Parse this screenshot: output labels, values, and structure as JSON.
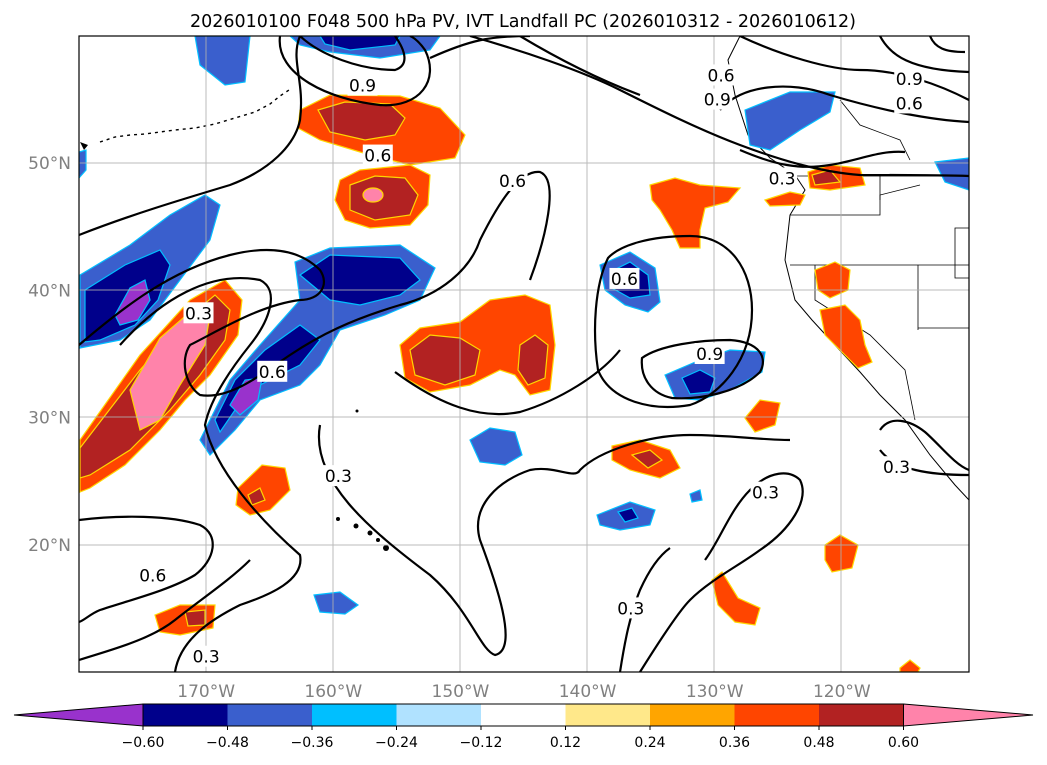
{
  "chart_data": {
    "type": "heatmap",
    "title": "2026010100 F048 500 hPa PV, IVT Landfall PC (2026010312 - 2026010612)",
    "projection": "map",
    "xlim": [
      -180,
      -110
    ],
    "ylim": [
      10,
      60
    ],
    "lat_ticks": [
      {
        "value": 50,
        "label": "50°N"
      },
      {
        "value": 40,
        "label": "40°N"
      },
      {
        "value": 30,
        "label": "30°N"
      },
      {
        "value": 20,
        "label": "20°N"
      }
    ],
    "lon_ticks": [
      {
        "value": -170,
        "label": "170°W"
      },
      {
        "value": -160,
        "label": "160°W"
      },
      {
        "value": -150,
        "label": "150°W"
      },
      {
        "value": -140,
        "label": "140°W"
      },
      {
        "value": -130,
        "label": "130°W"
      },
      {
        "value": -120,
        "label": "120°W"
      }
    ],
    "grid": true,
    "colorbar": {
      "orientation": "horizontal",
      "extend": "both",
      "levels": [
        -0.6,
        -0.48,
        -0.36,
        -0.24,
        -0.12,
        0.12,
        0.24,
        0.36,
        0.48,
        0.6
      ],
      "tick_labels": [
        "−0.60",
        "−0.48",
        "−0.36",
        "−0.24",
        "−0.12",
        "0.12",
        "0.24",
        "0.36",
        "0.48",
        "0.60"
      ],
      "colors": [
        "#9932cc",
        "#00008b",
        "#3a5fcd",
        "#00bfff",
        "#b0e2ff",
        "#ffffff",
        "#ffe88a",
        "#ffa500",
        "#ff4500",
        "#b22222",
        "#ff83aa"
      ]
    },
    "contour_levels": [
      0.3,
      0.6,
      0.9
    ],
    "contour_labels": [
      {
        "text": "0.9",
        "lon": -157.7,
        "lat": 56.1
      },
      {
        "text": "0.6",
        "lon": -156.5,
        "lat": 50.6
      },
      {
        "text": "0.3",
        "lon": -170.6,
        "lat": 38.2
      },
      {
        "text": "0.6",
        "lon": -164.8,
        "lat": 33.6
      },
      {
        "text": "0.3",
        "lon": -159.6,
        "lat": 25.4
      },
      {
        "text": "0.6",
        "lon": -145.9,
        "lat": 48.6
      },
      {
        "text": "0.6",
        "lon": -137.1,
        "lat": 40.9
      },
      {
        "text": "0.9",
        "lon": -130.4,
        "lat": 35.0
      },
      {
        "text": "0.6",
        "lon": -129.5,
        "lat": 56.9
      },
      {
        "text": "0.9",
        "lon": -129.8,
        "lat": 55.0
      },
      {
        "text": "0.3",
        "lon": -124.7,
        "lat": 48.8
      },
      {
        "text": "0.9",
        "lon": -114.7,
        "lat": 56.6
      },
      {
        "text": "0.6",
        "lon": -114.7,
        "lat": 54.7
      },
      {
        "text": "0.3",
        "lon": -115.7,
        "lat": 26.1
      },
      {
        "text": "0.3",
        "lon": -126.0,
        "lat": 24.1
      },
      {
        "text": "0.3",
        "lon": -136.6,
        "lat": 15.0
      },
      {
        "text": "0.6",
        "lon": -174.2,
        "lat": 17.6
      },
      {
        "text": "0.3",
        "lon": -170.0,
        "lat": 11.2
      }
    ]
  }
}
